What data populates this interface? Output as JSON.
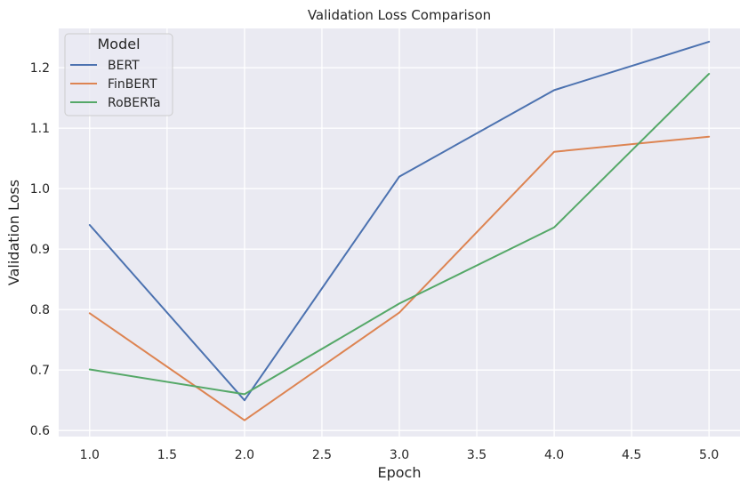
{
  "chart_data": {
    "type": "line",
    "title": "Validation Loss Comparison",
    "xlabel": "Epoch",
    "ylabel": "Validation Loss",
    "x": [
      1.0,
      2.0,
      3.0,
      4.0,
      5.0
    ],
    "xlim": [
      0.8,
      5.2
    ],
    "ylim": [
      0.59,
      1.265
    ],
    "xticks": [
      1.0,
      1.5,
      2.0,
      2.5,
      3.0,
      3.5,
      4.0,
      4.5,
      5.0
    ],
    "xtick_labels": [
      "1.0",
      "1.5",
      "2.0",
      "2.5",
      "3.0",
      "3.5",
      "4.0",
      "4.5",
      "5.0"
    ],
    "yticks": [
      0.6,
      0.7,
      0.8,
      0.9,
      1.0,
      1.1,
      1.2
    ],
    "ytick_labels": [
      "0.6",
      "0.7",
      "0.8",
      "0.9",
      "1.0",
      "1.1",
      "1.2"
    ],
    "grid": true,
    "legend_title": "Model",
    "legend_position": "top-left",
    "series": [
      {
        "name": "BERT",
        "color": "#4c72b0",
        "values": [
          0.94,
          0.65,
          1.02,
          1.163,
          1.243
        ]
      },
      {
        "name": "FinBERT",
        "color": "#dd8452",
        "values": [
          0.794,
          0.617,
          0.795,
          1.061,
          1.086
        ]
      },
      {
        "name": "RoBERTa",
        "color": "#55a868",
        "values": [
          0.701,
          0.66,
          0.81,
          0.936,
          1.19
        ]
      }
    ],
    "background_color": "#eaeaf2",
    "grid_color": "#ffffff"
  }
}
